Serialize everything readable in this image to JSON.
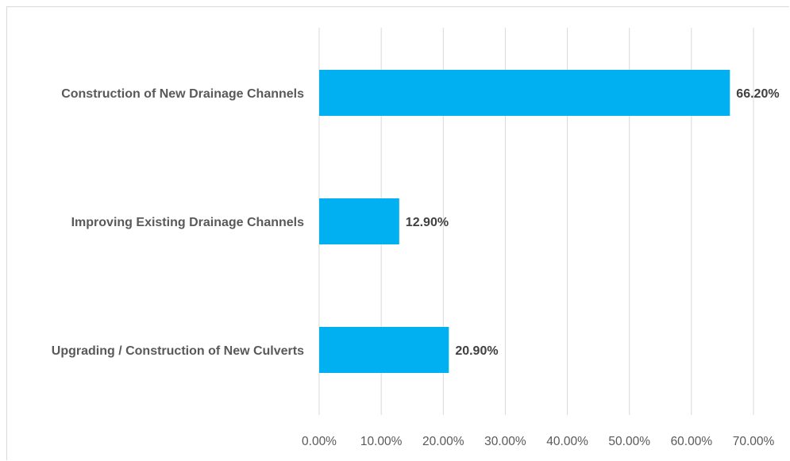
{
  "chart_data": {
    "type": "bar",
    "orientation": "horizontal",
    "title": "",
    "xlabel": "",
    "ylabel": "",
    "categories": [
      "Construction of New Drainage Channels",
      "Improving Existing Drainage Channels",
      "Upgrading / Construction of New Culverts"
    ],
    "values": [
      66.2,
      12.9,
      20.9
    ],
    "data_labels": [
      "66.20%",
      "12.90%",
      "20.90%"
    ],
    "xlim": [
      0,
      70
    ],
    "ticks": [
      0,
      10,
      20,
      30,
      40,
      50,
      60,
      70
    ],
    "tick_labels": [
      "0.00%",
      "10.00%",
      "20.00%",
      "30.00%",
      "40.00%",
      "50.00%",
      "60.00%",
      "70.00%"
    ],
    "grid": true,
    "legend": "none",
    "bar_color": "#00b0f0"
  }
}
